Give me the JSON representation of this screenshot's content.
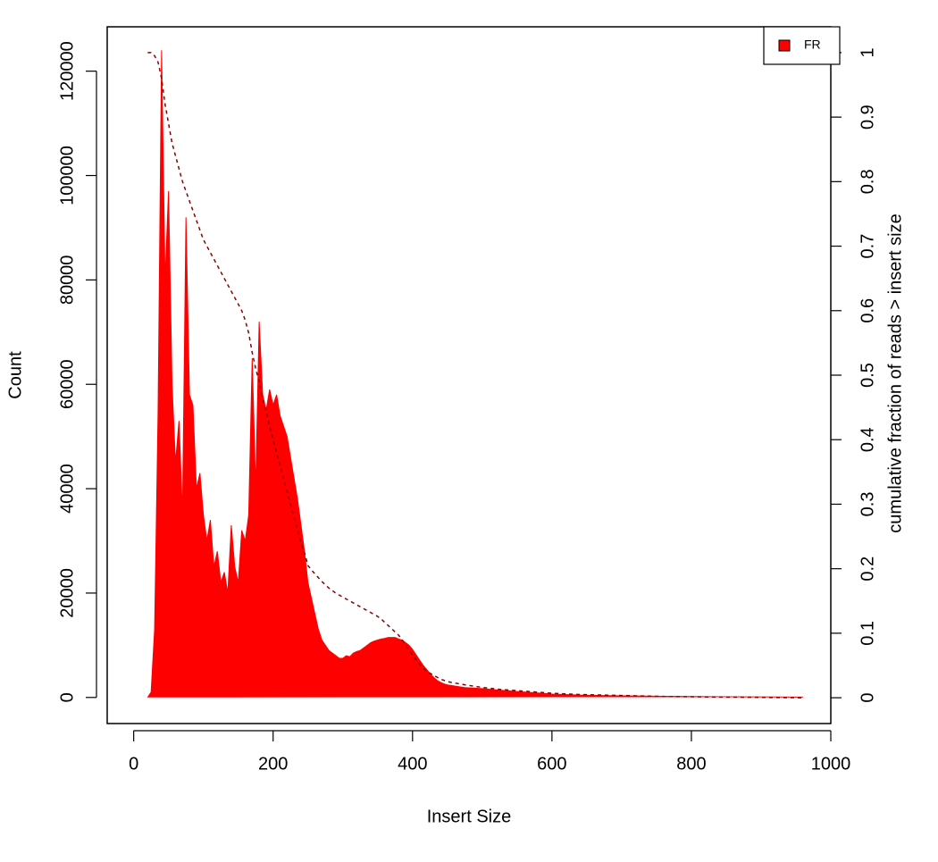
{
  "chart_data": {
    "type": "area",
    "x": [
      20,
      25,
      30,
      35,
      40,
      45,
      50,
      55,
      60,
      65,
      70,
      75,
      80,
      85,
      90,
      95,
      100,
      105,
      110,
      115,
      120,
      125,
      130,
      135,
      140,
      145,
      150,
      155,
      160,
      165,
      170,
      175,
      180,
      185,
      190,
      195,
      200,
      205,
      210,
      215,
      220,
      225,
      230,
      235,
      240,
      245,
      250,
      255,
      260,
      265,
      270,
      275,
      280,
      285,
      290,
      295,
      300,
      305,
      310,
      315,
      320,
      325,
      330,
      335,
      340,
      345,
      350,
      355,
      360,
      365,
      370,
      375,
      380,
      385,
      390,
      395,
      400,
      405,
      410,
      415,
      420,
      425,
      430,
      435,
      440,
      445,
      450,
      475,
      500,
      525,
      550,
      575,
      600,
      640,
      680,
      720,
      760,
      800,
      840,
      880,
      920,
      960
    ],
    "series": [
      {
        "name": "FR",
        "color": "#ff0000",
        "values": [
          0,
          1000,
          13000,
          55000,
          124000,
          80000,
          97000,
          60000,
          45000,
          53000,
          35000,
          92000,
          58000,
          56000,
          40000,
          43000,
          35000,
          30000,
          34000,
          25000,
          28000,
          22000,
          24000,
          20000,
          33000,
          25000,
          22000,
          32000,
          30000,
          35000,
          65000,
          40000,
          72000,
          58000,
          55000,
          59000,
          56000,
          58000,
          54000,
          52000,
          50000,
          46000,
          42000,
          38000,
          33000,
          28000,
          22000,
          19000,
          16000,
          13000,
          11000,
          10000,
          9000,
          8500,
          8000,
          7500,
          7500,
          8000,
          7800,
          8500,
          8800,
          9000,
          9500,
          10000,
          10500,
          10800,
          11000,
          11200,
          11300,
          11500,
          11500,
          11500,
          11200,
          11000,
          10500,
          10000,
          9200,
          8200,
          7200,
          6200,
          5400,
          4600,
          3900,
          3300,
          2900,
          2600,
          2400,
          1900,
          1700,
          1400,
          1150,
          900,
          650,
          450,
          350,
          280,
          220,
          180,
          140,
          110,
          90,
          70
        ]
      },
      {
        "type": "line",
        "axis": "y2",
        "color": "#8b0000",
        "dashed": true,
        "values": [
          1,
          1,
          0.995,
          0.985,
          0.96,
          0.92,
          0.89,
          0.86,
          0.84,
          0.82,
          0.8,
          0.785,
          0.77,
          0.755,
          0.74,
          0.725,
          0.71,
          0.7,
          0.69,
          0.68,
          0.67,
          0.66,
          0.65,
          0.64,
          0.63,
          0.62,
          0.61,
          0.6,
          0.585,
          0.565,
          0.535,
          0.51,
          0.49,
          0.465,
          0.445,
          0.42,
          0.4,
          0.38,
          0.36,
          0.34,
          0.32,
          0.3,
          0.28,
          0.26,
          0.24,
          0.225,
          0.205,
          0.198,
          0.192,
          0.186,
          0.18,
          0.175,
          0.17,
          0.166,
          0.162,
          0.159,
          0.156,
          0.153,
          0.15,
          0.147,
          0.144,
          0.141,
          0.138,
          0.135,
          0.132,
          0.129,
          0.126,
          0.122,
          0.117,
          0.112,
          0.107,
          0.102,
          0.097,
          0.09,
          0.082,
          0.074,
          0.066,
          0.059,
          0.052,
          0.046,
          0.041,
          0.038,
          0.035,
          0.032,
          0.029,
          0.027,
          0.025,
          0.02,
          0.016,
          0.013,
          0.011,
          0.009,
          0.007,
          0.005,
          0.004,
          0.003,
          0.002,
          0.0015,
          0.001,
          0.0007,
          0.0003,
          0
        ]
      }
    ],
    "xlabel": "Insert Size",
    "ylabel": "Count",
    "y2label": "cumulative fraction of reads > insert size",
    "xlim": [
      -38,
      1000
    ],
    "xticks": [
      0,
      200,
      400,
      600,
      800,
      1000
    ],
    "ylim": [
      -5000,
      128500
    ],
    "yticks": [
      0,
      20000,
      40000,
      60000,
      80000,
      100000,
      120000
    ],
    "y2lim": [
      -0.04,
      1.04
    ],
    "y2ticks": [
      0,
      0.1,
      0.2,
      0.3,
      0.4,
      0.5,
      0.6,
      0.7,
      0.8,
      0.9,
      1
    ],
    "legend": "topright"
  }
}
